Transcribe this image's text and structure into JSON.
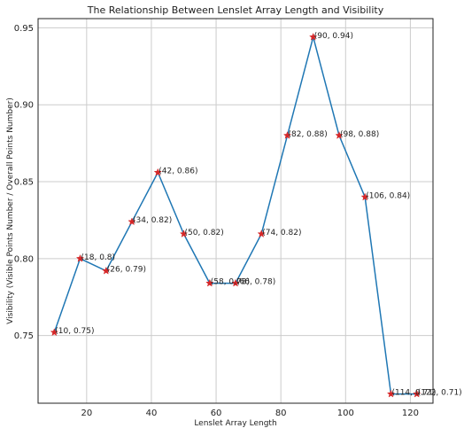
{
  "chart_data": {
    "type": "line",
    "title": "The Relationship Between Lenslet Array Length and Visibility",
    "xlabel": "Lenslet Array Length",
    "ylabel": "Visibility (Visible Points Number / Overall Points Number)",
    "x": [
      10,
      18,
      26,
      34,
      42,
      50,
      58,
      66,
      74,
      82,
      90,
      98,
      106,
      114,
      122
    ],
    "series": [
      {
        "values": [
          0.752,
          0.8,
          0.792,
          0.824,
          0.856,
          0.816,
          0.784,
          0.784,
          0.816,
          0.88,
          0.944,
          0.88,
          0.84,
          0.712,
          0.712
        ]
      }
    ],
    "point_labels": [
      "(10, 0.75)",
      "(18, 0.8)",
      "(26, 0.79)",
      "(34, 0.82)",
      "(42, 0.86)",
      "(50, 0.82)",
      "(58, 0.78)",
      "(66, 0.78)",
      "(74, 0.82)",
      "(82, 0.88)",
      "(90, 0.94)",
      "(98, 0.88)",
      "(106, 0.84)",
      "(114, 0.71)",
      "(122, 0.71)"
    ],
    "xticks": [
      20,
      40,
      60,
      80,
      100,
      120
    ],
    "yticks": [
      0.75,
      0.8,
      0.85,
      0.9,
      0.95
    ],
    "ytick_labels": [
      "0.75",
      "0.80",
      "0.85",
      "0.90",
      "0.95"
    ],
    "xlim": [
      5,
      127
    ],
    "ylim": [
      0.706,
      0.956
    ],
    "grid": true,
    "colors": {
      "line": "#1f77b4",
      "marker": "#d62728",
      "grid": "#cccccc",
      "axes": "#222222"
    }
  }
}
